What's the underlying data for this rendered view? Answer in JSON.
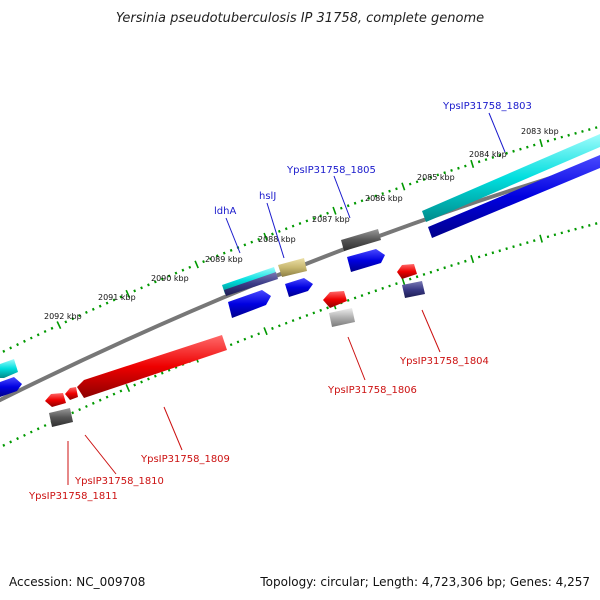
{
  "title": "Yersinia pseudotuberculosis IP 31758, complete genome",
  "footer": {
    "accession": "Accession: NC_009708",
    "summary": "Topology: circular; Length: 4,723,306 bp; Genes: 4,257"
  },
  "ruler_labels": [
    "2083 kbp",
    "2084 kbp",
    "2085 kbp",
    "2086 kbp",
    "2087 kbp",
    "2088 kbp",
    "2089 kbp",
    "2090 kbp",
    "2091 kbp",
    "2092 kbp"
  ],
  "gene_labels_forward": [
    "YpsIP31758_1803",
    "YpsIP31758_1805",
    "hslJ",
    "ldhA"
  ],
  "gene_labels_reverse": [
    "YpsIP31758_1804",
    "YpsIP31758_1806",
    "YpsIP31758_1809",
    "YpsIP31758_1810",
    "YpsIP31758_1811"
  ],
  "colors": {
    "cds": "#0000ee",
    "gene_cyan": "#00dddd",
    "reverse_red": "#ee0000",
    "dark_gray": "#555555",
    "light_gray": "#aaaaaa",
    "khaki": "#c8b870",
    "navy": "#333377",
    "ruler_green": "#009900",
    "backbone": "#777777"
  }
}
